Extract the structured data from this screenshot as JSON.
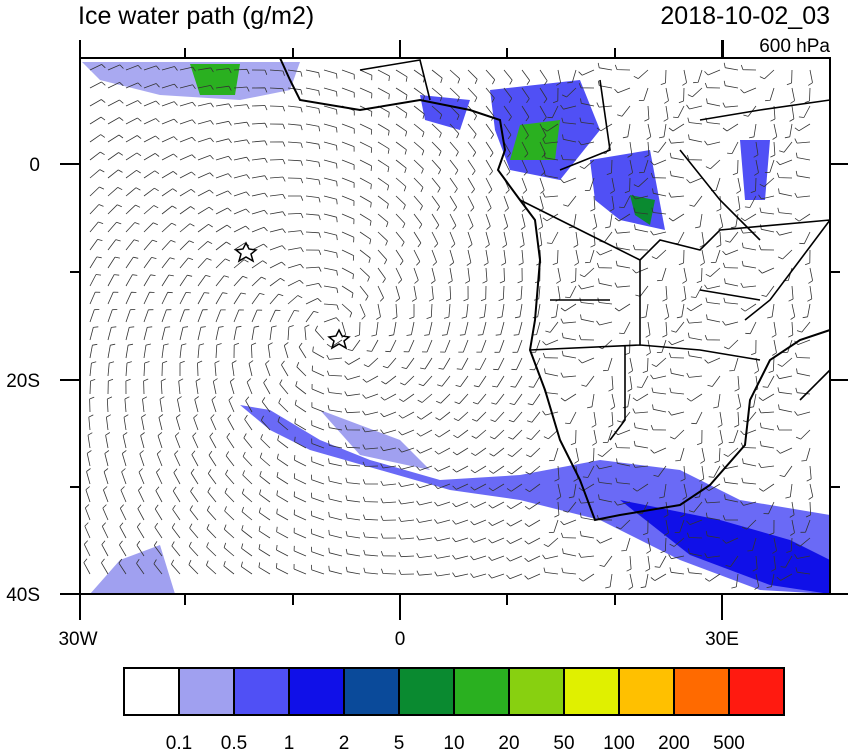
{
  "header": {
    "title": "Ice water path (g/m2)",
    "time": "2018-10-02_03",
    "level": "600 hPa"
  },
  "lat_labels": [
    "0",
    "20S",
    "40S"
  ],
  "lon_labels": [
    "30W",
    "0",
    "30E"
  ],
  "colorbar": {
    "colors": [
      "#ffffff",
      "#a0a0f0",
      "#5050f5",
      "#1010e8",
      "#0a4a9a",
      "#0a8a30",
      "#2ab020",
      "#88d010",
      "#e0f000",
      "#ffc000",
      "#ff6a00",
      "#ff1a10"
    ],
    "labels": [
      0.1,
      0.5,
      1,
      2,
      5,
      10,
      20,
      50,
      100,
      200,
      500
    ]
  }
}
